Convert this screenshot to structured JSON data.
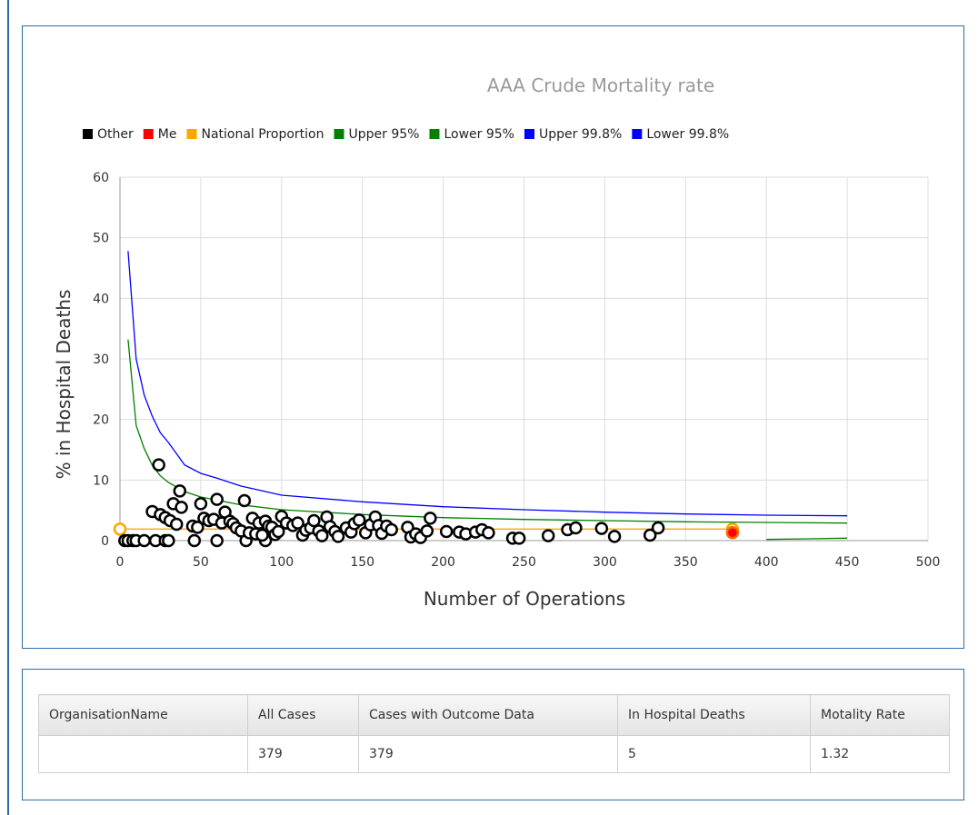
{
  "chart_data": {
    "type": "scatter",
    "title": "AAA Crude Mortality rate",
    "xlabel": "Number of Operations",
    "ylabel": "% in Hospital Deaths",
    "xlim": [
      0,
      500
    ],
    "ylim": [
      0,
      60
    ],
    "xticks": [
      0,
      50,
      100,
      150,
      200,
      250,
      300,
      350,
      400,
      450,
      500
    ],
    "yticks": [
      0,
      10,
      20,
      30,
      40,
      50,
      60
    ],
    "grid": true,
    "legend_position": "top",
    "legend": [
      {
        "label": "Other",
        "color": "#000000"
      },
      {
        "label": "Me",
        "color": "#ff0000"
      },
      {
        "label": "National Proportion",
        "color": "#ffa500"
      },
      {
        "label": "Upper 95%",
        "color": "#008000"
      },
      {
        "label": "Lower 95%",
        "color": "#008000"
      },
      {
        "label": "Upper 99.8%",
        "color": "#0000ff"
      },
      {
        "label": "Lower 99.8%",
        "color": "#0000ff"
      }
    ],
    "series": [
      {
        "name": "Other",
        "kind": "scatter",
        "color": "#000000",
        "points": [
          [
            3,
            0
          ],
          [
            5,
            0
          ],
          [
            8,
            0
          ],
          [
            10,
            0
          ],
          [
            15,
            0
          ],
          [
            22,
            0
          ],
          [
            28,
            0
          ],
          [
            30,
            0
          ],
          [
            46,
            0
          ],
          [
            60,
            0
          ],
          [
            78,
            0
          ],
          [
            90,
            0
          ],
          [
            20,
            4.8
          ],
          [
            24,
            12.5
          ],
          [
            25,
            4.3
          ],
          [
            28,
            3.8
          ],
          [
            31,
            3.3
          ],
          [
            33,
            6.1
          ],
          [
            35,
            2.7
          ],
          [
            37,
            8.2
          ],
          [
            38,
            5.5
          ],
          [
            45,
            2.4
          ],
          [
            48,
            2.2
          ],
          [
            50,
            6.1
          ],
          [
            52,
            3.7
          ],
          [
            55,
            3.3
          ],
          [
            58,
            3.5
          ],
          [
            60,
            6.8
          ],
          [
            63,
            2.9
          ],
          [
            65,
            4.7
          ],
          [
            68,
            3.2
          ],
          [
            70,
            2.8
          ],
          [
            72,
            2.1
          ],
          [
            75,
            1.6
          ],
          [
            77,
            6.6
          ],
          [
            80,
            1.3
          ],
          [
            82,
            3.7
          ],
          [
            84,
            1.1
          ],
          [
            86,
            2.9
          ],
          [
            88,
            0.9
          ],
          [
            90,
            3.2
          ],
          [
            92,
            2.4
          ],
          [
            94,
            2.2
          ],
          [
            96,
            1.0
          ],
          [
            98,
            1.5
          ],
          [
            100,
            4.0
          ],
          [
            103,
            2.9
          ],
          [
            107,
            2.5
          ],
          [
            110,
            2.9
          ],
          [
            113,
            0.9
          ],
          [
            115,
            1.7
          ],
          [
            118,
            2.1
          ],
          [
            120,
            3.3
          ],
          [
            123,
            1.6
          ],
          [
            125,
            0.8
          ],
          [
            128,
            3.9
          ],
          [
            130,
            2.3
          ],
          [
            133,
            1.5
          ],
          [
            135,
            0.7
          ],
          [
            140,
            2.1
          ],
          [
            143,
            1.4
          ],
          [
            145,
            2.8
          ],
          [
            148,
            3.4
          ],
          [
            152,
            1.3
          ],
          [
            155,
            2.6
          ],
          [
            158,
            3.9
          ],
          [
            160,
            2.5
          ],
          [
            162,
            1.2
          ],
          [
            165,
            2.4
          ],
          [
            168,
            1.8
          ],
          [
            178,
            2.2
          ],
          [
            180,
            0.6
          ],
          [
            183,
            1.1
          ],
          [
            186,
            0.5
          ],
          [
            190,
            1.6
          ],
          [
            192,
            3.7
          ],
          [
            202,
            1.5
          ],
          [
            210,
            1.4
          ],
          [
            214,
            1.1
          ],
          [
            220,
            1.4
          ],
          [
            224,
            1.8
          ],
          [
            228,
            1.3
          ],
          [
            243,
            0.4
          ],
          [
            247,
            0.4
          ],
          [
            265,
            0.8
          ],
          [
            277,
            1.8
          ],
          [
            282,
            2.1
          ],
          [
            298,
            2.0
          ],
          [
            306,
            0.7
          ],
          [
            328,
            0.9
          ],
          [
            333,
            2.1
          ]
        ]
      },
      {
        "name": "Me",
        "kind": "scatter",
        "color": "#ff0000",
        "points": [
          [
            379,
            1.32
          ]
        ]
      },
      {
        "name": "National Proportion",
        "kind": "line",
        "color": "#ffa500",
        "points": [
          [
            0,
            1.9
          ],
          [
            379,
            1.9
          ]
        ],
        "endpoints": [
          [
            0,
            1.9
          ],
          [
            379,
            1.9
          ]
        ]
      },
      {
        "name": "Upper 95%",
        "kind": "line",
        "color": "#008000",
        "points": [
          [
            5,
            33.2
          ],
          [
            10,
            19
          ],
          [
            15,
            15.2
          ],
          [
            20,
            12.4
          ],
          [
            25,
            10.7
          ],
          [
            30,
            9.6
          ],
          [
            40,
            8.1
          ],
          [
            50,
            7.2
          ],
          [
            75,
            5.9
          ],
          [
            100,
            5.1
          ],
          [
            150,
            4.3
          ],
          [
            200,
            3.8
          ],
          [
            250,
            3.5
          ],
          [
            300,
            3.3
          ],
          [
            350,
            3.1
          ],
          [
            400,
            3.0
          ],
          [
            450,
            2.9
          ]
        ]
      },
      {
        "name": "Lower 95%",
        "kind": "line",
        "color": "#008000",
        "points": [
          [
            400,
            0.2
          ],
          [
            450,
            0.4
          ]
        ]
      },
      {
        "name": "Upper 99.8%",
        "kind": "line",
        "color": "#0000ff",
        "points": [
          [
            5,
            47.8
          ],
          [
            10,
            30
          ],
          [
            15,
            24
          ],
          [
            20,
            20.5
          ],
          [
            25,
            17.8
          ],
          [
            30,
            16.2
          ],
          [
            40,
            12.5
          ],
          [
            50,
            11.1
          ],
          [
            60,
            10.3
          ],
          [
            75,
            9.0
          ],
          [
            100,
            7.5
          ],
          [
            150,
            6.4
          ],
          [
            200,
            5.6
          ],
          [
            250,
            5.1
          ],
          [
            300,
            4.7
          ],
          [
            350,
            4.4
          ],
          [
            400,
            4.2
          ],
          [
            450,
            4.1
          ]
        ]
      },
      {
        "name": "Lower 99.8%",
        "kind": "line",
        "color": "#0000ff",
        "points": []
      }
    ]
  },
  "table": {
    "headers": [
      "OrganisationName",
      "All Cases",
      "Cases with Outcome Data",
      "In Hospital Deaths",
      "Motality Rate"
    ],
    "row": [
      "",
      "379",
      "379",
      "5",
      "1.32"
    ]
  }
}
